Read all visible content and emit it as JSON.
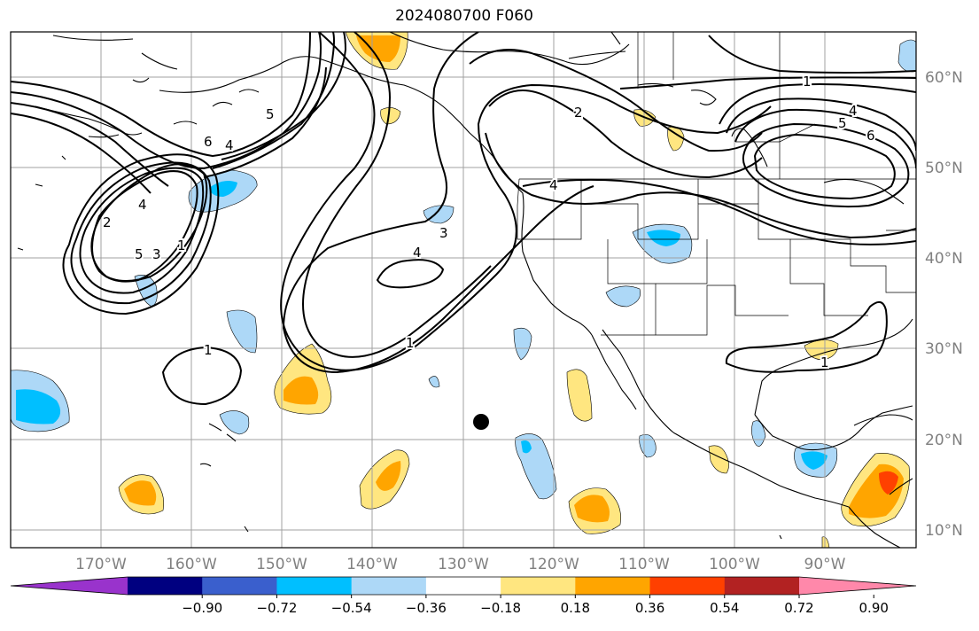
{
  "title": "2024080700 F060",
  "lon_labels": [
    "170°W",
    "160°W",
    "150°W",
    "140°W",
    "130°W",
    "120°W",
    "110°W",
    "100°W",
    "90°W"
  ],
  "lat_labels": [
    "60°N",
    "50°N",
    "40°N",
    "30°N",
    "20°N",
    "10°N"
  ],
  "colorbar": {
    "ticks": [
      "−0.90",
      "−0.72",
      "−0.54",
      "−0.36",
      "−0.18",
      "0.18",
      "0.36",
      "0.54",
      "0.72",
      "0.90"
    ],
    "colors": [
      "#9933cc",
      "#000080",
      "#3a5fcd",
      "#00bfff",
      "#add8f7",
      "#ffffff",
      "#ffe680",
      "#ffa500",
      "#ff4000",
      "#b22222",
      "#ff88aa"
    ]
  },
  "contour_labels": {
    "alaska_6": "6",
    "alaska_4": "4",
    "alaska_5": "5",
    "loop_2": "2",
    "loop_4": "4",
    "loop_5": "5",
    "loop_3": "3",
    "loop_1": "1",
    "mid_3": "3",
    "mid_4": "4",
    "mid_1": "1",
    "hawaii_1": "1",
    "coast_2": "2",
    "coast_4": "4",
    "east_1": "1",
    "east_4": "4",
    "east_5": "5",
    "east_6": "6",
    "gulf_1": "1"
  },
  "marker": "storm-position-dot"
}
